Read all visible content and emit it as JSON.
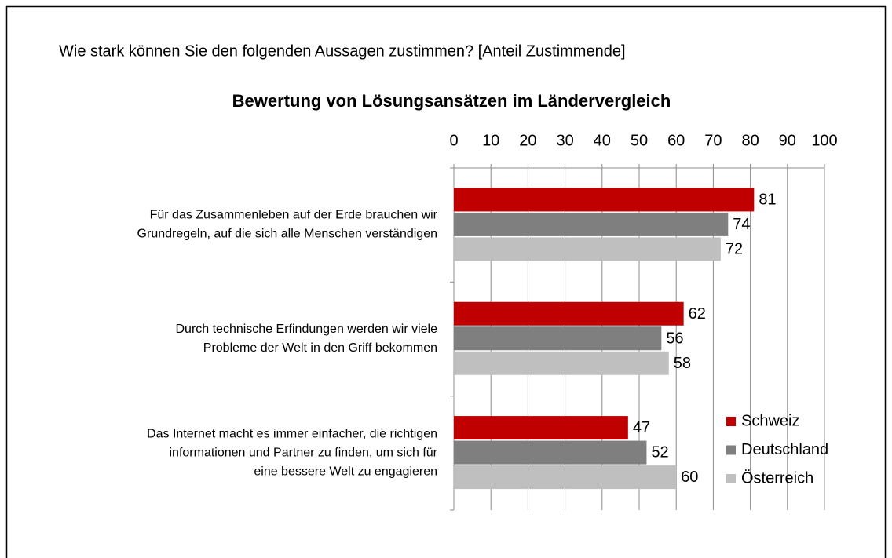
{
  "chart_data": {
    "type": "bar",
    "orientation": "horizontal",
    "subtitle": "Wie stark können Sie den folgenden Aussagen zustimmen? [Anteil Zustimmende]",
    "title": "Bewertung von Lösungsansätzen im Ländervergleich",
    "categories": [
      "Für das Zusammenleben auf der Erde brauchen wir\nGrundregeln, auf die sich alle Menschen verständigen",
      "Durch technische Erfindungen werden wir viele\nProbleme der Welt in den Griff bekommen",
      "Das Internet macht es immer einfacher, die richtigen\ninformationen und Partner zu finden, um sich für\neine bessere Welt zu engagieren"
    ],
    "series": [
      {
        "name": "Schweiz",
        "color": "#c00000",
        "values": [
          81,
          62,
          47
        ]
      },
      {
        "name": "Deutschland",
        "color": "#7f7f7f",
        "values": [
          74,
          56,
          52
        ]
      },
      {
        "name": "Österreich",
        "color": "#bfbfbf",
        "values": [
          72,
          58,
          60
        ]
      }
    ],
    "xlim": [
      0,
      100
    ],
    "xticks": [
      0,
      10,
      20,
      30,
      40,
      50,
      60,
      70,
      80,
      90,
      100
    ],
    "grid": true,
    "legend": "right"
  }
}
